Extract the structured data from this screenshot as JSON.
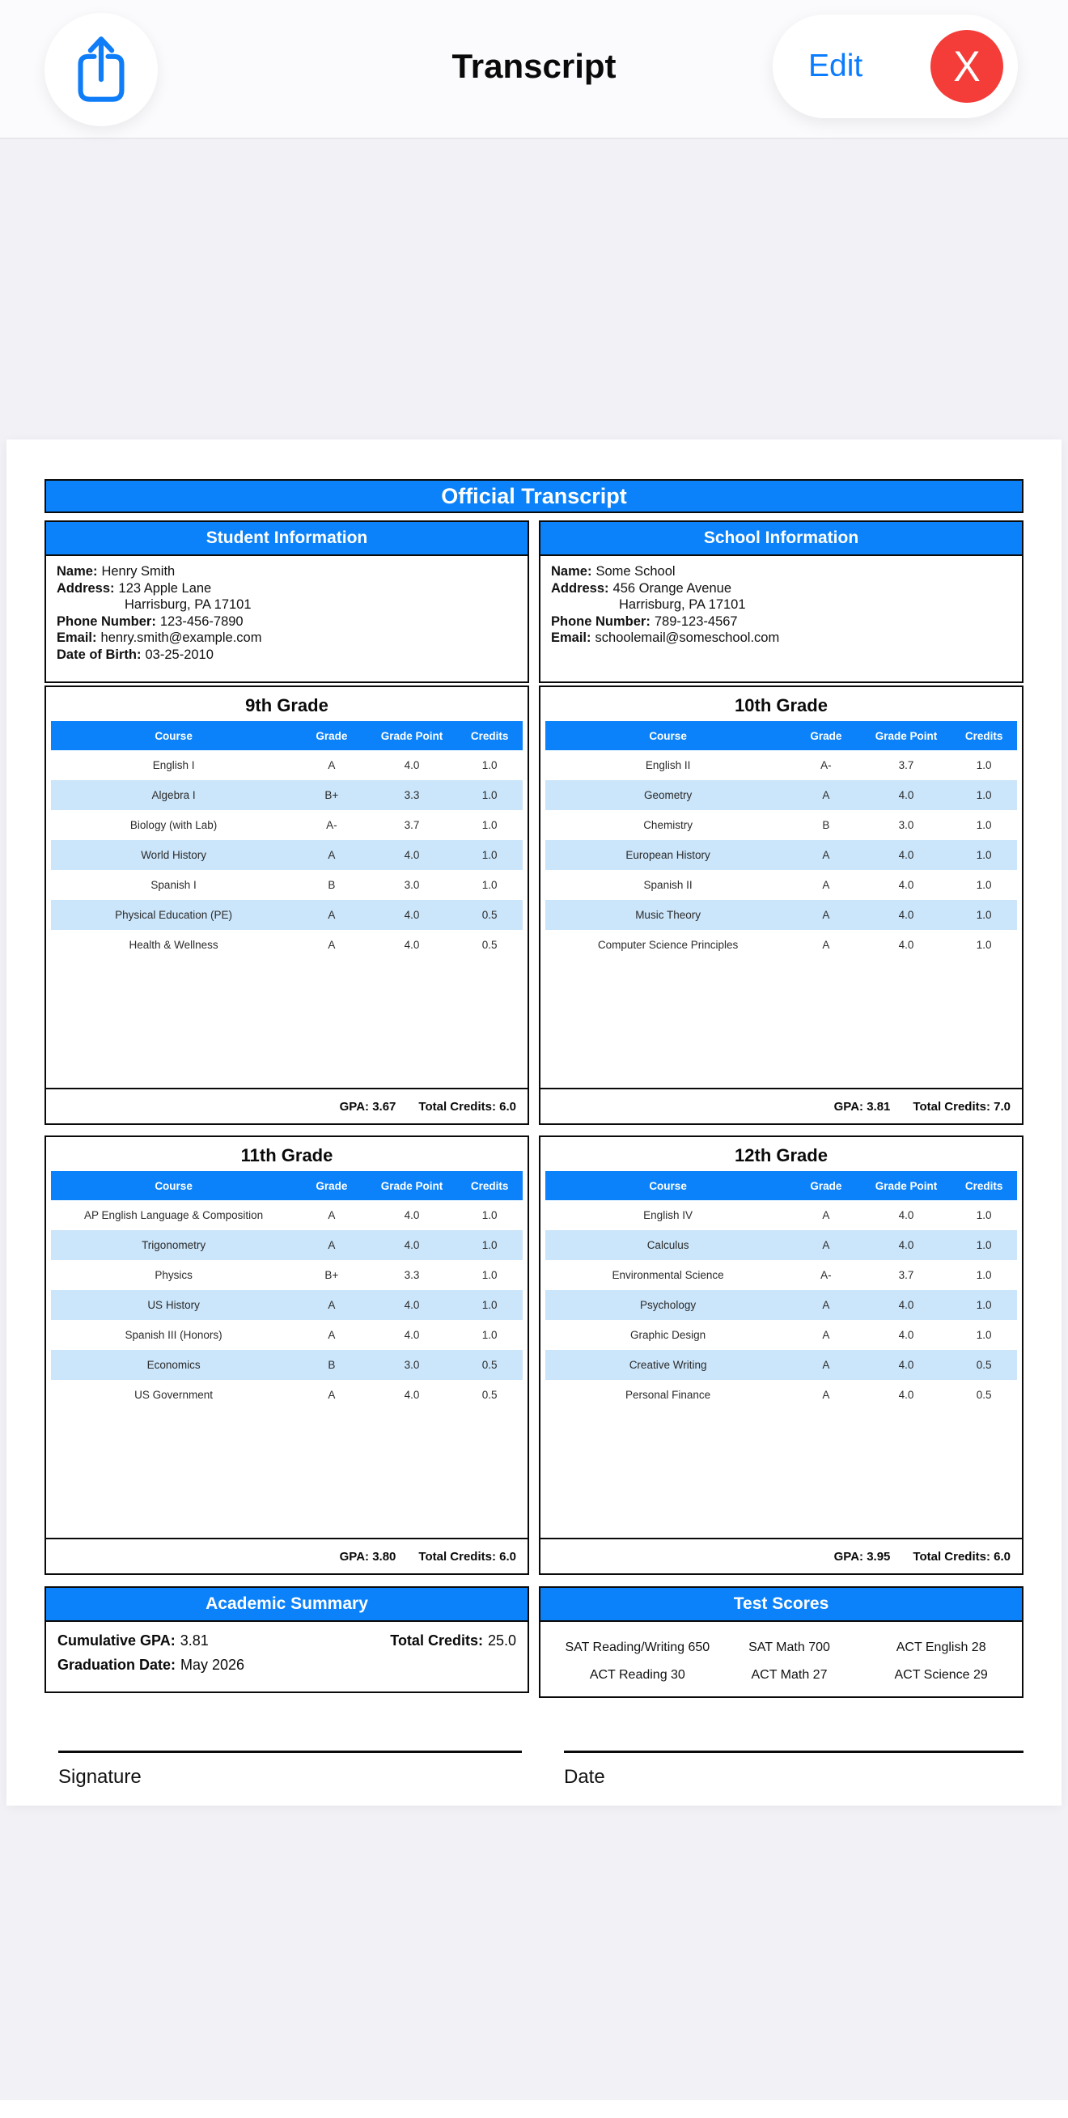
{
  "navbar": {
    "title": "Transcript",
    "edit_label": "Edit",
    "close_label": "X"
  },
  "colors": {
    "accent_blue": "#0B82F9",
    "row_alt_blue": "#CBE5FA",
    "close_red": "#F43C39",
    "link_blue": "#0A7CFF"
  },
  "document": {
    "banner_title": "Official Transcript",
    "labels": {
      "gpa": "GPA:",
      "total_credits": "Total Credits:"
    },
    "student_info": {
      "header": "Student Information",
      "lines": [
        {
          "label": "Name:",
          "value": "Henry Smith",
          "indent": false
        },
        {
          "label": "Address:",
          "value": "123 Apple Lane",
          "indent": false
        },
        {
          "label": "",
          "value": "Harrisburg, PA 17101",
          "indent": true
        },
        {
          "label": "Phone Number:",
          "value": "123-456-7890",
          "indent": false
        },
        {
          "label": "Email:",
          "value": "henry.smith@example.com",
          "indent": false
        },
        {
          "label": "Date of Birth:",
          "value": "03-25-2010",
          "indent": false
        }
      ]
    },
    "school_info": {
      "header": "School Information",
      "lines": [
        {
          "label": "Name:",
          "value": "Some School",
          "indent": false
        },
        {
          "label": "Address:",
          "value": "456 Orange Avenue",
          "indent": false
        },
        {
          "label": "",
          "value": "Harrisburg, PA 17101",
          "indent": true
        },
        {
          "label": "Phone Number:",
          "value": "789-123-4567",
          "indent": false
        },
        {
          "label": "Email:",
          "value": "schoolemail@someschool.com",
          "indent": false
        }
      ]
    },
    "grade_tables": [
      {
        "title": "9th Grade",
        "columns": [
          "Course",
          "Grade",
          "Grade Point",
          "Credits"
        ],
        "rows": [
          [
            "English I",
            "A",
            "4.0",
            "1.0"
          ],
          [
            "Algebra I",
            "B+",
            "3.3",
            "1.0"
          ],
          [
            "Biology (with Lab)",
            "A-",
            "3.7",
            "1.0"
          ],
          [
            "World History",
            "A",
            "4.0",
            "1.0"
          ],
          [
            "Spanish I",
            "B",
            "3.0",
            "1.0"
          ],
          [
            "Physical Education (PE)",
            "A",
            "4.0",
            "0.5"
          ],
          [
            "Health & Wellness",
            "A",
            "4.0",
            "0.5"
          ]
        ],
        "gpa": "3.67",
        "total_credits": "6.0"
      },
      {
        "title": "10th Grade",
        "columns": [
          "Course",
          "Grade",
          "Grade Point",
          "Credits"
        ],
        "rows": [
          [
            "English II",
            "A-",
            "3.7",
            "1.0"
          ],
          [
            "Geometry",
            "A",
            "4.0",
            "1.0"
          ],
          [
            "Chemistry",
            "B",
            "3.0",
            "1.0"
          ],
          [
            "European History",
            "A",
            "4.0",
            "1.0"
          ],
          [
            "Spanish II",
            "A",
            "4.0",
            "1.0"
          ],
          [
            "Music Theory",
            "A",
            "4.0",
            "1.0"
          ],
          [
            "Computer Science Principles",
            "A",
            "4.0",
            "1.0"
          ]
        ],
        "gpa": "3.81",
        "total_credits": "7.0"
      },
      {
        "title": "11th Grade",
        "columns": [
          "Course",
          "Grade",
          "Grade Point",
          "Credits"
        ],
        "rows": [
          [
            "AP English Language & Composition",
            "A",
            "4.0",
            "1.0"
          ],
          [
            "Trigonometry",
            "A",
            "4.0",
            "1.0"
          ],
          [
            "Physics",
            "B+",
            "3.3",
            "1.0"
          ],
          [
            "US History",
            "A",
            "4.0",
            "1.0"
          ],
          [
            "Spanish III (Honors)",
            "A",
            "4.0",
            "1.0"
          ],
          [
            "Economics",
            "B",
            "3.0",
            "0.5"
          ],
          [
            "US Government",
            "A",
            "4.0",
            "0.5"
          ]
        ],
        "gpa": "3.80",
        "total_credits": "6.0"
      },
      {
        "title": "12th Grade",
        "columns": [
          "Course",
          "Grade",
          "Grade Point",
          "Credits"
        ],
        "rows": [
          [
            "English IV",
            "A",
            "4.0",
            "1.0"
          ],
          [
            "Calculus",
            "A",
            "4.0",
            "1.0"
          ],
          [
            "Environmental Science",
            "A-",
            "3.7",
            "1.0"
          ],
          [
            "Psychology",
            "A",
            "4.0",
            "1.0"
          ],
          [
            "Graphic Design",
            "A",
            "4.0",
            "1.0"
          ],
          [
            "Creative Writing",
            "A",
            "4.0",
            "0.5"
          ],
          [
            "Personal Finance",
            "A",
            "4.0",
            "0.5"
          ]
        ],
        "gpa": "3.95",
        "total_credits": "6.0"
      }
    ],
    "academic_summary": {
      "header": "Academic Summary",
      "cumulative_gpa_label": "Cumulative GPA:",
      "cumulative_gpa": "3.81",
      "total_credits_label": "Total Credits:",
      "total_credits": "25.0",
      "graduation_label": "Graduation Date:",
      "graduation": "May 2026"
    },
    "test_scores": {
      "header": "Test Scores",
      "cells": [
        "SAT Reading/Writing 650",
        "SAT Math 700",
        "ACT English 28",
        "ACT Reading 30",
        "ACT Math 27",
        "ACT Science 29"
      ]
    },
    "signature_label": "Signature",
    "date_label": "Date"
  }
}
